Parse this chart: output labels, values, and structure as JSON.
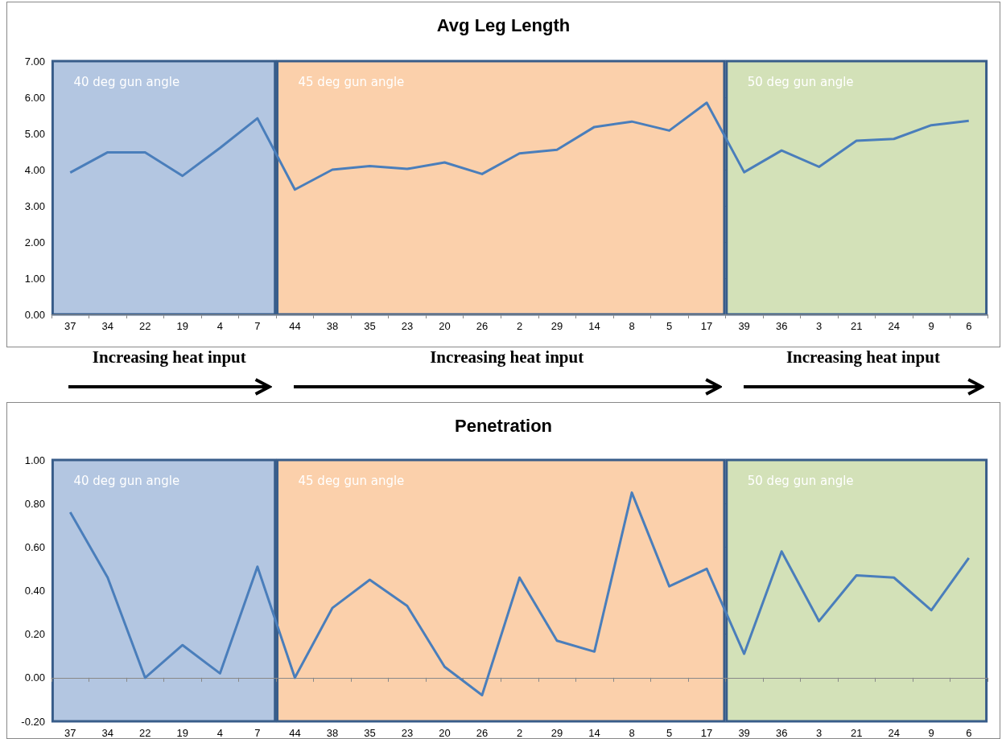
{
  "chart_data": [
    {
      "type": "line",
      "title": "Avg Leg Length",
      "categories": [
        "37",
        "34",
        "22",
        "19",
        "4",
        "7",
        "44",
        "38",
        "35",
        "23",
        "20",
        "26",
        "2",
        "29",
        "14",
        "8",
        "5",
        "17",
        "39",
        "36",
        "3",
        "21",
        "24",
        "9",
        "6"
      ],
      "series": [
        {
          "color": "#4a7ebb",
          "values": [
            3.92,
            4.48,
            4.48,
            3.83,
            4.6,
            5.42,
            3.45,
            4.0,
            4.1,
            4.02,
            4.2,
            3.88,
            4.45,
            4.55,
            5.18,
            5.33,
            5.08,
            5.85,
            3.93,
            4.53,
            4.08,
            4.8,
            4.85,
            5.23,
            5.35
          ]
        }
      ],
      "ylim": [
        0,
        7
      ],
      "yticks": [
        {
          "value": 0,
          "label": "0.00"
        },
        {
          "value": 1,
          "label": "1.00"
        },
        {
          "value": 2,
          "label": "2.00"
        },
        {
          "value": 3,
          "label": "3.00"
        },
        {
          "value": 4,
          "label": "4.00"
        },
        {
          "value": 5,
          "label": "5.00"
        },
        {
          "value": 6,
          "label": "6.00"
        },
        {
          "value": 7,
          "label": "7.00"
        }
      ],
      "grid": "y",
      "marker": "none",
      "bands": [
        {
          "axis": "x",
          "from": "37",
          "to": "7",
          "label": "40 deg gun angle",
          "color": "#b3c6e1"
        },
        {
          "axis": "x",
          "from": "44",
          "to": "17",
          "label": "45 deg gun angle",
          "color": "#fbd0ab"
        },
        {
          "axis": "x",
          "from": "39",
          "to": "6",
          "label": "50 deg gun angle",
          "color": "#d3e1b8"
        }
      ],
      "annotations": [
        "Increasing heat input",
        "Increasing heat input",
        "Increasing heat input"
      ]
    },
    {
      "type": "line",
      "title": "Penetration",
      "categories": [
        "37",
        "34",
        "22",
        "19",
        "4",
        "7",
        "44",
        "38",
        "35",
        "23",
        "20",
        "26",
        "2",
        "29",
        "14",
        "8",
        "5",
        "17",
        "39",
        "36",
        "3",
        "21",
        "24",
        "9",
        "6"
      ],
      "series": [
        {
          "color": "#4a7ebb",
          "values": [
            0.76,
            0.46,
            0.0,
            0.15,
            0.02,
            0.51,
            0.0,
            0.32,
            0.45,
            0.33,
            0.05,
            -0.08,
            0.46,
            0.17,
            0.12,
            0.85,
            0.42,
            0.5,
            0.11,
            0.58,
            0.26,
            0.47,
            0.46,
            0.31,
            0.55
          ]
        }
      ],
      "ylim": [
        -0.2,
        1
      ],
      "yticks": [
        {
          "value": -0.2,
          "label": "-0.20"
        },
        {
          "value": 0,
          "label": "0.00"
        },
        {
          "value": 0.2,
          "label": "0.20"
        },
        {
          "value": 0.4,
          "label": "0.40"
        },
        {
          "value": 0.6,
          "label": "0.60"
        },
        {
          "value": 0.8,
          "label": "0.80"
        },
        {
          "value": 1,
          "label": "1.00"
        }
      ],
      "grid": "y",
      "marker": "none",
      "bands": [
        {
          "axis": "x",
          "from": "37",
          "to": "7",
          "label": "40 deg gun angle",
          "color": "#b3c6e1"
        },
        {
          "axis": "x",
          "from": "44",
          "to": "17",
          "label": "45 deg gun angle",
          "color": "#fbd0ab"
        },
        {
          "axis": "x",
          "from": "39",
          "to": "6",
          "label": "50 deg gun angle",
          "color": "#d3e1b8"
        }
      ]
    }
  ]
}
